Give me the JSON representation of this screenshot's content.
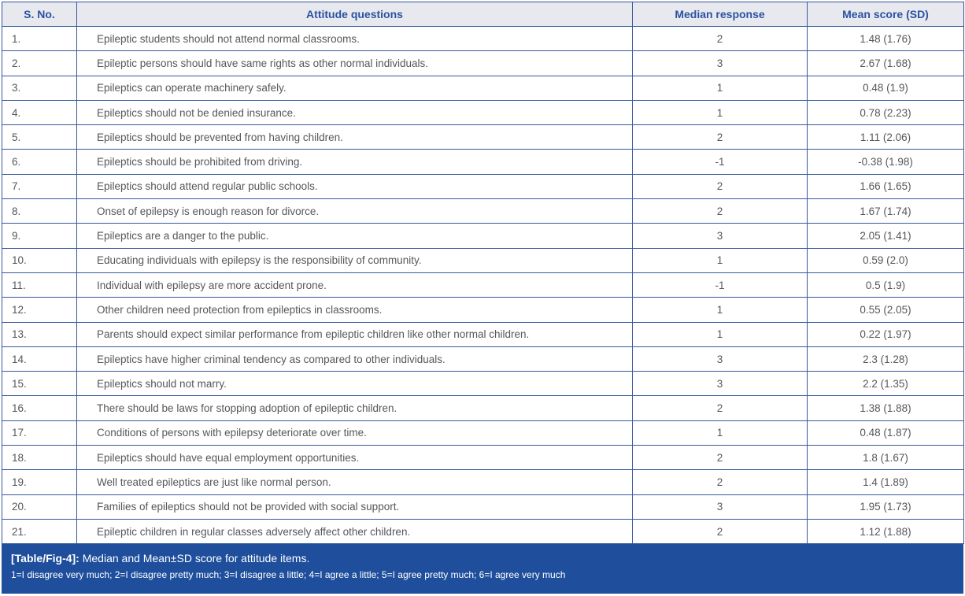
{
  "colors": {
    "border_blue": "#35589e",
    "header_bg": "#e8e9ef",
    "header_text": "#2b52a0",
    "body_text": "#56575b",
    "footer_bg": "#1e4e9c",
    "footer_text": "#ffffff"
  },
  "table": {
    "columns": [
      "S. No.",
      "Attitude questions",
      "Median response",
      "Mean score (SD)"
    ],
    "rows": [
      {
        "sno": "1.",
        "question": "Epileptic students should not attend normal classrooms.",
        "median": "2",
        "mean": "1.48 (1.76)"
      },
      {
        "sno": "2.",
        "question": "Epileptic persons should have same rights as other normal individuals.",
        "median": "3",
        "mean": "2.67 (1.68)"
      },
      {
        "sno": "3.",
        "question": "Epileptics can operate machinery safely.",
        "median": "1",
        "mean": "0.48 (1.9)"
      },
      {
        "sno": "4.",
        "question": "Epileptics should not be denied insurance.",
        "median": "1",
        "mean": "0.78 (2.23)"
      },
      {
        "sno": "5.",
        "question": "Epileptics should be prevented from having children.",
        "median": "2",
        "mean": "1.11 (2.06)"
      },
      {
        "sno": "6.",
        "question": "Epileptics should be prohibited from driving.",
        "median": "-1",
        "mean": "-0.38 (1.98)"
      },
      {
        "sno": "7.",
        "question": "Epileptics should attend regular public schools.",
        "median": "2",
        "mean": "1.66 (1.65)"
      },
      {
        "sno": "8.",
        "question": "Onset of epilepsy is enough reason for divorce.",
        "median": "2",
        "mean": "1.67 (1.74)"
      },
      {
        "sno": "9.",
        "question": "Epileptics are a danger to the public.",
        "median": "3",
        "mean": "2.05 (1.41)"
      },
      {
        "sno": "10.",
        "question": "Educating individuals with epilepsy is the responsibility of community.",
        "median": "1",
        "mean": "0.59 (2.0)"
      },
      {
        "sno": "11.",
        "question": "Individual with epilepsy are more accident prone.",
        "median": "-1",
        "mean": "0.5 (1.9)"
      },
      {
        "sno": "12.",
        "question": "Other children need protection from epileptics in classrooms.",
        "median": "1",
        "mean": "0.55 (2.05)"
      },
      {
        "sno": "13.",
        "question": "Parents should expect similar performance from epileptic children like other normal children.",
        "median": "1",
        "mean": "0.22 (1.97)"
      },
      {
        "sno": "14.",
        "question": "Epileptics have higher criminal tendency as compared to other individuals.",
        "median": "3",
        "mean": "2.3 (1.28)"
      },
      {
        "sno": "15.",
        "question": "Epileptics should not marry.",
        "median": "3",
        "mean": "2.2 (1.35)"
      },
      {
        "sno": "16.",
        "question": "There should be laws for stopping adoption of epileptic children.",
        "median": "2",
        "mean": "1.38 (1.88)"
      },
      {
        "sno": "17.",
        "question": "Conditions of persons with epilepsy deteriorate over time.",
        "median": "1",
        "mean": "0.48 (1.87)"
      },
      {
        "sno": "18.",
        "question": "Epileptics should have equal employment opportunities.",
        "median": "2",
        "mean": "1.8 (1.67)"
      },
      {
        "sno": "19.",
        "question": "Well treated epileptics are just like normal person.",
        "median": "2",
        "mean": "1.4 (1.89)"
      },
      {
        "sno": "20.",
        "question": "Families of epileptics should not be provided with social support.",
        "median": "3",
        "mean": "1.95 (1.73)"
      },
      {
        "sno": "21.",
        "question": "Epileptic children in regular classes adversely affect other children.",
        "median": "2",
        "mean": "1.12 (1.88)"
      }
    ]
  },
  "caption": {
    "label": "[Table/Fig-4]:",
    "text": "Median and Mean±SD score for attitude items.",
    "footnote": "1=I disagree very much; 2=I disagree pretty much; 3=I disagree a little; 4=I agree a little; 5=I agree pretty much; 6=I agree very much"
  }
}
